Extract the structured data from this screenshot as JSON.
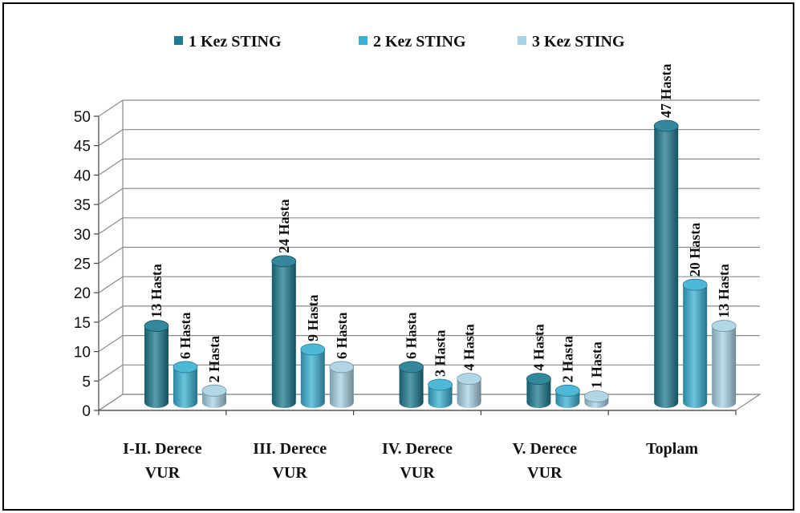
{
  "colors": {
    "series": [
      "#1f7b91",
      "#3ab1d2",
      "#a8d3e4"
    ],
    "grid": "#8a8a8a",
    "axis": "#444444"
  },
  "chart_data": {
    "type": "bar",
    "grid": true,
    "legend_position": "top",
    "ylim": [
      0,
      50
    ],
    "yticks": [
      0,
      5,
      10,
      15,
      20,
      25,
      30,
      35,
      40,
      45,
      50
    ],
    "categories": [
      [
        "I-II. Derece",
        "VUR"
      ],
      [
        "III. Derece",
        "VUR"
      ],
      [
        "IV. Derece",
        "VUR"
      ],
      [
        "V. Derece",
        "VUR"
      ],
      [
        "Toplam"
      ]
    ],
    "series": [
      {
        "name": "1 Kez STING",
        "values": [
          13,
          24,
          6,
          4,
          47
        ],
        "labels": [
          "13 Hasta",
          "24 Hasta",
          "6 Hasta",
          "4 Hasta",
          "47 Hasta"
        ]
      },
      {
        "name": "2 Kez STING",
        "values": [
          6,
          9,
          3,
          2,
          20
        ],
        "labels": [
          "6 Hasta",
          "9 Hasta",
          "3 Hasta",
          "2 Hasta",
          "20 Hasta"
        ]
      },
      {
        "name": "3 Kez STING",
        "values": [
          2,
          6,
          4,
          1,
          13
        ],
        "labels": [
          "2 Hasta",
          "6 Hasta",
          "4 Hasta",
          "1 Hasta",
          "13 Hasta"
        ]
      }
    ]
  }
}
